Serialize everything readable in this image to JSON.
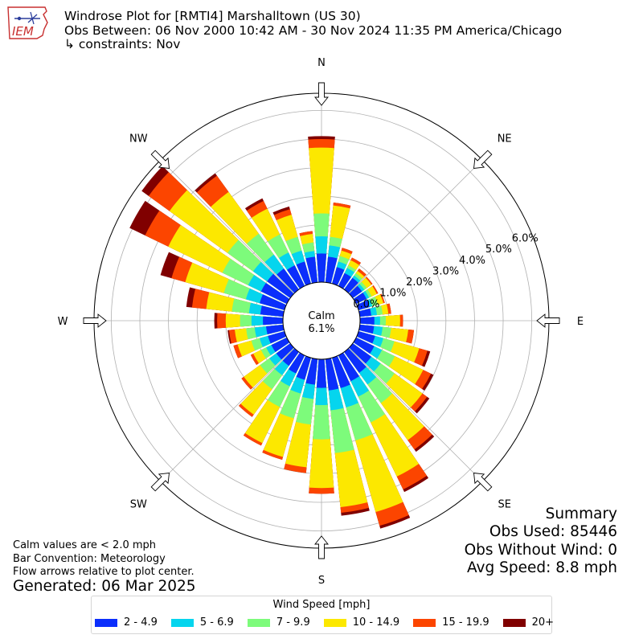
{
  "header": {
    "logo_text": "IEM",
    "title_line1": "Windrose Plot for [RMTI4] Marshalltown (US 30)",
    "title_line2": "Obs Between: 06 Nov 2000 10:42 AM - 30 Nov 2024 11:35 PM America/Chicago",
    "title_line3": "↳ constraints: Nov"
  },
  "chart_data": {
    "type": "windrose",
    "directions": [
      0,
      10,
      20,
      30,
      40,
      50,
      60,
      70,
      80,
      90,
      100,
      110,
      120,
      130,
      140,
      150,
      160,
      170,
      180,
      190,
      200,
      210,
      220,
      230,
      240,
      250,
      260,
      270,
      280,
      290,
      300,
      310,
      320,
      330,
      340,
      350
    ],
    "compass_labels": [
      "N",
      "NE",
      "E",
      "SE",
      "S",
      "SW",
      "W",
      "NW"
    ],
    "radial_ticks": [
      "0.0%",
      "1.0%",
      "2.0%",
      "3.0%",
      "4.0%",
      "5.0%",
      "6.0%"
    ],
    "radial_max": 6.6,
    "center_label": "Calm",
    "center_value": "6.1%",
    "speed_bins": [
      {
        "label": "2 - 4.9",
        "color": "#0b2efc"
      },
      {
        "label": "5 - 6.9",
        "color": "#05d5ee"
      },
      {
        "label": "7 - 9.9",
        "color": "#7dfb7b"
      },
      {
        "label": "10 - 14.9",
        "color": "#fce800"
      },
      {
        "label": "15 - 19.9",
        "color": "#fc4500"
      },
      {
        "label": "20+",
        "color": "#800000"
      }
    ],
    "cumulative_frequencies": [
      [
        1.0,
        1.6,
        2.4,
        4.7,
        5.0,
        5.1
      ],
      [
        0.9,
        1.3,
        1.6,
        2.7,
        2.8,
        2.8
      ],
      [
        0.6,
        0.8,
        1.0,
        1.2,
        1.3,
        1.3
      ],
      [
        0.5,
        0.7,
        0.8,
        1.0,
        1.1,
        1.1
      ],
      [
        0.5,
        0.6,
        0.7,
        0.8,
        0.9,
        0.9
      ],
      [
        0.4,
        0.5,
        0.6,
        0.8,
        0.85,
        0.85
      ],
      [
        0.4,
        0.5,
        0.6,
        0.8,
        0.85,
        0.85
      ],
      [
        0.4,
        0.5,
        0.7,
        0.9,
        0.95,
        0.95
      ],
      [
        0.4,
        0.6,
        0.8,
        1.0,
        1.1,
        1.1
      ],
      [
        0.5,
        0.7,
        0.9,
        1.4,
        1.5,
        1.5
      ],
      [
        0.5,
        0.8,
        1.1,
        1.7,
        1.9,
        1.9
      ],
      [
        0.6,
        0.9,
        1.3,
        2.2,
        2.5,
        2.6
      ],
      [
        0.7,
        1.0,
        1.5,
        2.6,
        2.9,
        3.0
      ],
      [
        0.8,
        1.2,
        1.8,
        3.0,
        3.2,
        3.3
      ],
      [
        0.9,
        1.4,
        2.2,
        3.8,
        4.2,
        4.3
      ],
      [
        1.0,
        1.6,
        2.6,
        4.7,
        5.2,
        5.3
      ],
      [
        1.1,
        1.8,
        3.0,
        5.6,
        6.1,
        6.2
      ],
      [
        1.1,
        1.8,
        3.3,
        5.2,
        5.4,
        5.5
      ],
      [
        1.0,
        1.6,
        2.8,
        4.5,
        4.7,
        4.7
      ],
      [
        0.9,
        1.4,
        2.3,
        3.8,
        4.0,
        4.0
      ],
      [
        0.8,
        1.3,
        2.2,
        3.6,
        3.7,
        3.7
      ],
      [
        0.7,
        1.2,
        2.0,
        3.4,
        3.5,
        3.5
      ],
      [
        0.6,
        1.0,
        1.6,
        2.7,
        2.8,
        2.8
      ],
      [
        0.6,
        0.9,
        1.3,
        2.0,
        2.1,
        2.1
      ],
      [
        0.6,
        0.8,
        1.0,
        1.3,
        1.4,
        1.4
      ],
      [
        0.6,
        0.9,
        1.2,
        1.7,
        1.85,
        1.85
      ],
      [
        0.6,
        1.0,
        1.3,
        1.7,
        1.9,
        1.95
      ],
      [
        0.7,
        1.1,
        1.5,
        2.0,
        2.3,
        2.4
      ],
      [
        0.8,
        1.2,
        1.8,
        2.7,
        3.2,
        3.4
      ],
      [
        0.9,
        1.4,
        2.2,
        3.6,
        4.1,
        4.5
      ],
      [
        1.0,
        1.5,
        2.5,
        4.6,
        5.5,
        6.1
      ],
      [
        1.0,
        1.6,
        2.7,
        5.2,
        6.1,
        6.4
      ],
      [
        0.9,
        1.5,
        2.4,
        4.2,
        4.9,
        5.0
      ],
      [
        0.8,
        1.3,
        2.0,
        3.0,
        3.3,
        3.4
      ],
      [
        0.8,
        1.2,
        1.7,
        2.5,
        2.7,
        2.8
      ],
      [
        0.9,
        1.1,
        1.4,
        1.7,
        1.8,
        1.8
      ]
    ]
  },
  "summary": {
    "heading": "Summary",
    "obs_used": "Obs Used: 85446",
    "obs_without_wind": "Obs Without Wind: 0",
    "avg_speed": "Avg Speed: 8.8 mph"
  },
  "notes": {
    "calm": "Calm values are < 2.0 mph",
    "bar_convention": "Bar Convention: Meteorology",
    "flow_arrows": "Flow arrows relative to plot center.",
    "generated": "Generated: 06 Mar 2025"
  },
  "legend": {
    "title": "Wind Speed [mph]"
  }
}
